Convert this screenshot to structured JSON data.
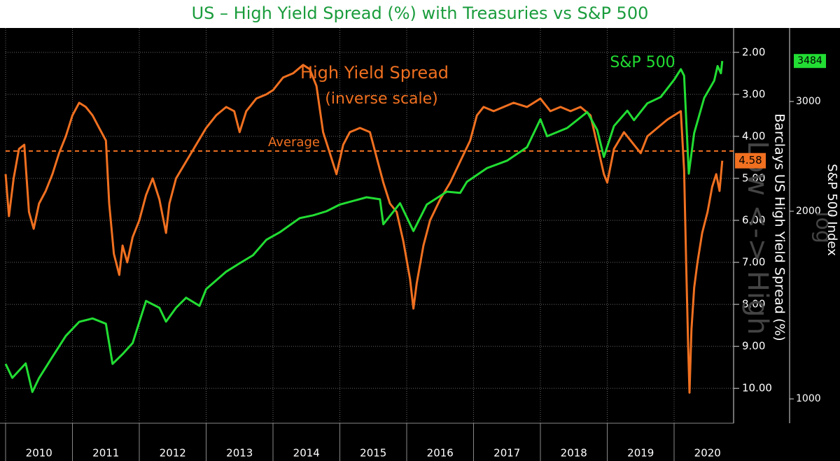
{
  "chart_data": {
    "type": "line",
    "title": "US – High Yield Spread (%) with Treasuries vs S&P 500",
    "y_label": "Barclays US High Yield Spread (%)",
    "y2_label": "S&P 500 Index",
    "spread_label": "High Yield Spread",
    "spread_sublabel": "(inverse scale)",
    "sp_label": "S&P 500",
    "watermark": [
      "Low <-> High",
      "log"
    ],
    "average": {
      "value": 4.35,
      "label": "Average"
    },
    "y_badge": {
      "value": 4.58,
      "label": "4.58"
    },
    "y2_badge": {
      "value": 3484,
      "label": "3484"
    },
    "xlim": [
      2010,
      2020.89
    ],
    "xticks": [
      {
        "value": 2010,
        "label": "2010"
      },
      {
        "value": 2011,
        "label": "2011"
      },
      {
        "value": 2012,
        "label": "2012"
      },
      {
        "value": 2013,
        "label": "2013"
      },
      {
        "value": 2014,
        "label": "2014"
      },
      {
        "value": 2015,
        "label": "2015"
      },
      {
        "value": 2016,
        "label": "2016"
      },
      {
        "value": 2017,
        "label": "2017"
      },
      {
        "value": 2018,
        "label": "2018"
      },
      {
        "value": 2019,
        "label": "2019"
      },
      {
        "value": 2020,
        "label": "2020"
      }
    ],
    "ylim": [
      10.83,
      1.42
    ],
    "yticks": [
      {
        "value": 2,
        "label": "2.00"
      },
      {
        "value": 3,
        "label": "3.00"
      },
      {
        "value": 4,
        "label": "4.00"
      },
      {
        "value": 5,
        "label": "5.00"
      },
      {
        "value": 6,
        "label": "6.00"
      },
      {
        "value": 7,
        "label": "7.00"
      },
      {
        "value": 8,
        "label": "8.00"
      },
      {
        "value": 9,
        "label": "9.00"
      },
      {
        "value": 10,
        "label": "10.00"
      }
    ],
    "y2lim": [
      914,
      3936
    ],
    "y2ticks": [
      1000,
      2000,
      3000
    ],
    "y2_log": true,
    "grid": true,
    "series": [
      {
        "name": "High Yield Spread",
        "color": "#f07020",
        "axis": "y",
        "x": [
          2010.0,
          2010.05,
          2010.12,
          2010.2,
          2010.28,
          2010.35,
          2010.42,
          2010.5,
          2010.6,
          2010.7,
          2010.8,
          2010.9,
          2011.0,
          2011.1,
          2011.2,
          2011.3,
          2011.4,
          2011.5,
          2011.55,
          2011.62,
          2011.7,
          2011.75,
          2011.82,
          2011.9,
          2012.0,
          2012.1,
          2012.2,
          2012.3,
          2012.4,
          2012.45,
          2012.55,
          2012.7,
          2012.85,
          2013.0,
          2013.15,
          2013.3,
          2013.42,
          2013.5,
          2013.6,
          2013.75,
          2013.9,
          2014.0,
          2014.15,
          2014.3,
          2014.45,
          2014.55,
          2014.65,
          2014.75,
          2014.85,
          2014.95,
          2015.05,
          2015.15,
          2015.3,
          2015.45,
          2015.55,
          2015.65,
          2015.75,
          2015.85,
          2015.95,
          2016.05,
          2016.1,
          2016.15,
          2016.25,
          2016.35,
          2016.5,
          2016.65,
          2016.8,
          2016.95,
          2017.05,
          2017.15,
          2017.3,
          2017.45,
          2017.6,
          2017.8,
          2018.0,
          2018.15,
          2018.3,
          2018.45,
          2018.6,
          2018.75,
          2018.85,
          2018.95,
          2019.0,
          2019.1,
          2019.25,
          2019.4,
          2019.5,
          2019.6,
          2019.75,
          2019.9,
          2020.0,
          2020.1,
          2020.15,
          2020.18,
          2020.21,
          2020.23,
          2020.26,
          2020.3,
          2020.35,
          2020.42,
          2020.5,
          2020.57,
          2020.63,
          2020.68,
          2020.72
        ],
        "values": [
          4.9,
          5.9,
          5.0,
          4.3,
          4.2,
          5.8,
          6.2,
          5.6,
          5.3,
          4.9,
          4.4,
          4.0,
          3.5,
          3.2,
          3.3,
          3.5,
          3.8,
          4.1,
          5.6,
          6.8,
          7.3,
          6.6,
          7.0,
          6.4,
          6.0,
          5.4,
          5.0,
          5.5,
          6.3,
          5.6,
          5.0,
          4.6,
          4.2,
          3.8,
          3.5,
          3.3,
          3.4,
          3.9,
          3.4,
          3.1,
          3.0,
          2.9,
          2.6,
          2.5,
          2.3,
          2.4,
          2.8,
          3.9,
          4.4,
          4.9,
          4.2,
          3.9,
          3.8,
          3.9,
          4.5,
          5.1,
          5.6,
          5.8,
          6.5,
          7.4,
          8.1,
          7.5,
          6.6,
          6.0,
          5.5,
          5.1,
          4.6,
          4.1,
          3.5,
          3.3,
          3.4,
          3.3,
          3.2,
          3.3,
          3.1,
          3.4,
          3.3,
          3.4,
          3.3,
          3.5,
          4.2,
          4.9,
          5.1,
          4.3,
          3.9,
          4.2,
          4.4,
          4.0,
          3.8,
          3.6,
          3.5,
          3.4,
          4.8,
          7.0,
          9.0,
          10.1,
          8.6,
          7.6,
          7.0,
          6.3,
          5.8,
          5.2,
          4.9,
          5.3,
          4.58
        ]
      },
      {
        "name": "S&P 500",
        "color": "#22dd33",
        "axis": "y2",
        "x": [
          2010.0,
          2010.1,
          2010.3,
          2010.4,
          2010.5,
          2010.7,
          2010.9,
          2011.1,
          2011.3,
          2011.5,
          2011.6,
          2011.75,
          2011.9,
          2012.1,
          2012.3,
          2012.4,
          2012.55,
          2012.7,
          2012.9,
          2013.0,
          2013.3,
          2013.5,
          2013.7,
          2013.9,
          2014.1,
          2014.4,
          2014.6,
          2014.8,
          2015.0,
          2015.4,
          2015.6,
          2015.65,
          2015.9,
          2016.1,
          2016.3,
          2016.6,
          2016.8,
          2016.9,
          2017.2,
          2017.5,
          2017.8,
          2018.0,
          2018.1,
          2018.4,
          2018.7,
          2018.85,
          2018.95,
          2019.1,
          2019.3,
          2019.4,
          2019.6,
          2019.8,
          2020.0,
          2020.1,
          2020.15,
          2020.22,
          2020.3,
          2020.45,
          2020.6,
          2020.65,
          2020.7,
          2020.72
        ],
        "values": [
          1138,
          1081,
          1140,
          1026,
          1080,
          1168,
          1262,
          1329,
          1346,
          1320,
          1138,
          1180,
          1229,
          1436,
          1400,
          1330,
          1400,
          1453,
          1410,
          1500,
          1600,
          1650,
          1700,
          1800,
          1850,
          1950,
          1970,
          2000,
          2050,
          2106,
          2090,
          1906,
          2060,
          1859,
          2050,
          2150,
          2140,
          2230,
          2345,
          2411,
          2534,
          2810,
          2638,
          2720,
          2885,
          2700,
          2444,
          2740,
          2900,
          2800,
          2980,
          3050,
          3250,
          3380,
          3300,
          2298,
          2670,
          3040,
          3240,
          3420,
          3330,
          3484
        ]
      }
    ]
  }
}
